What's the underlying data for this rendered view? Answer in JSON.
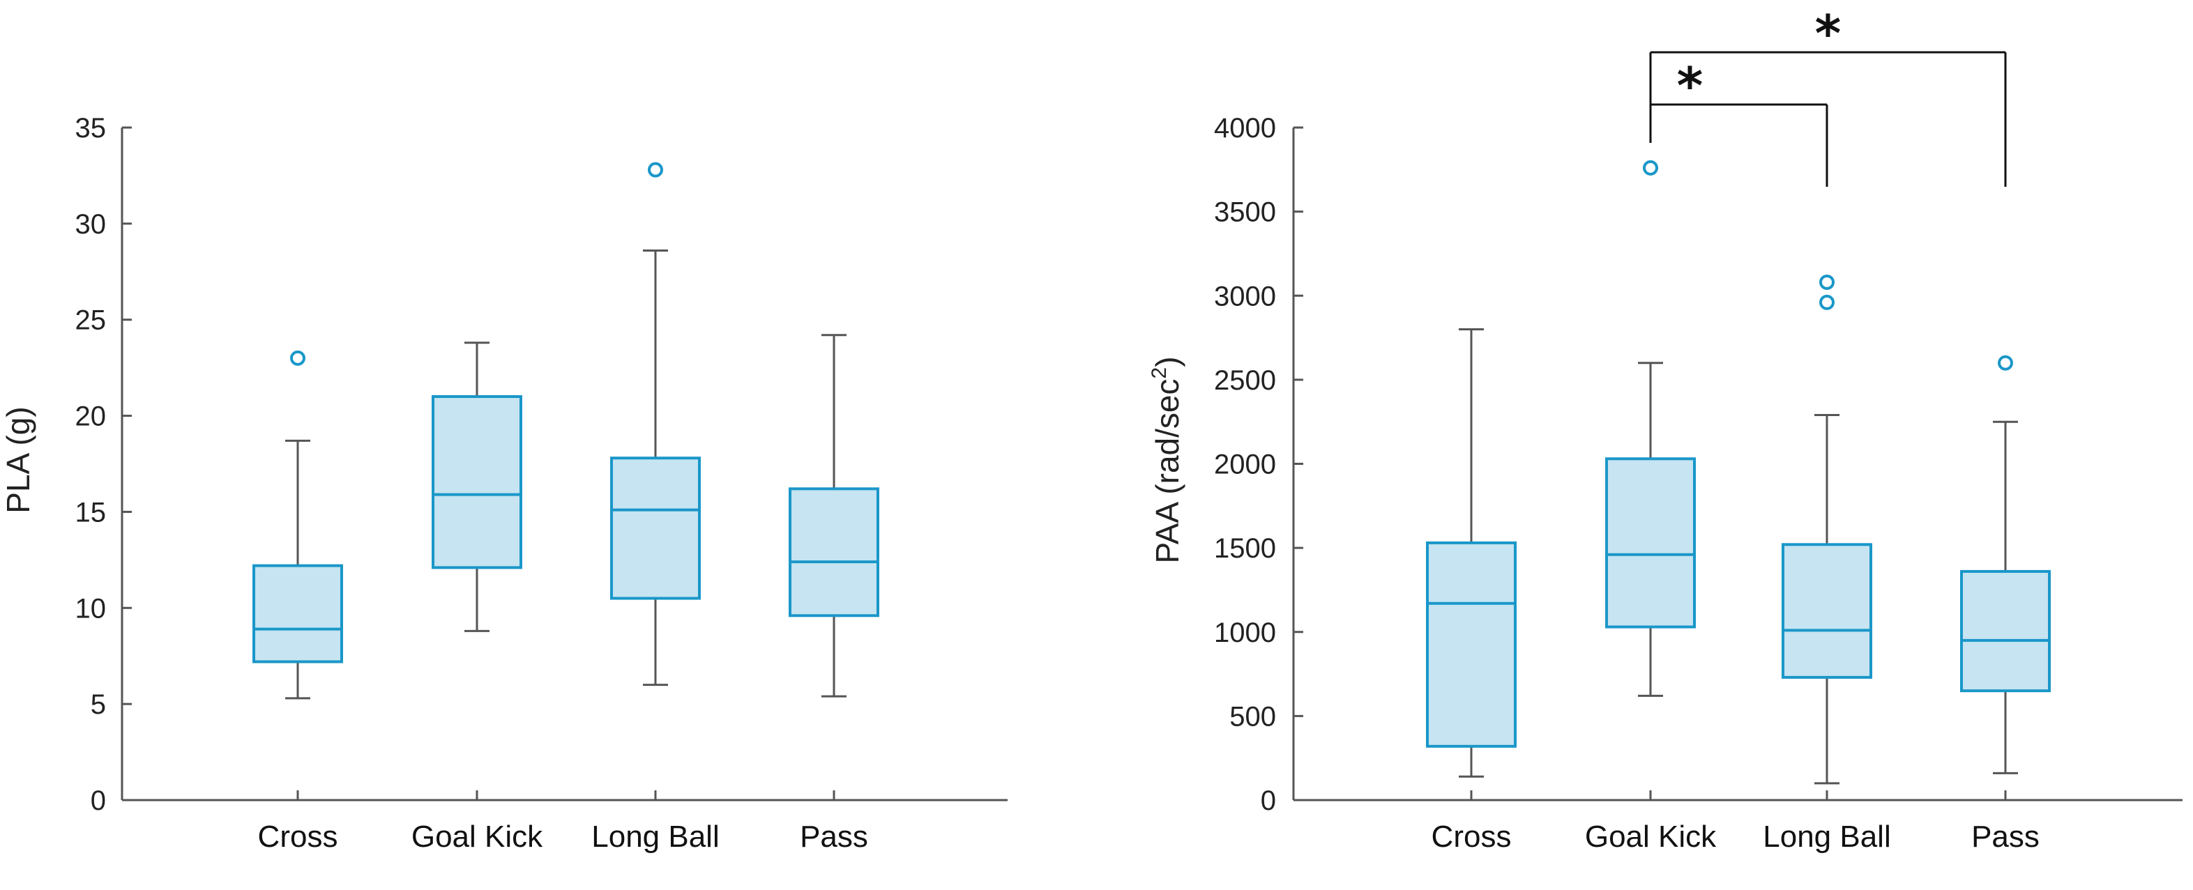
{
  "chart_data": [
    {
      "type": "box",
      "ylabel": "PLA (g)",
      "ylim": [
        0,
        35
      ],
      "yticks": [
        0,
        5,
        10,
        15,
        20,
        25,
        30,
        35
      ],
      "categories": [
        "Cross",
        "Goal Kick",
        "Long Ball",
        "Pass"
      ],
      "boxes": [
        {
          "category": "Cross",
          "whisker_low": 5.3,
          "q1": 7.2,
          "median": 8.9,
          "q3": 12.2,
          "whisker_high": 18.7,
          "outliers": [
            23.0
          ]
        },
        {
          "category": "Goal Kick",
          "whisker_low": 8.8,
          "q1": 12.1,
          "median": 15.9,
          "q3": 21.0,
          "whisker_high": 23.8,
          "outliers": []
        },
        {
          "category": "Long Ball",
          "whisker_low": 6.0,
          "q1": 10.5,
          "median": 15.1,
          "q3": 17.8,
          "whisker_high": 28.6,
          "outliers": [
            32.8
          ]
        },
        {
          "category": "Pass",
          "whisker_low": 5.4,
          "q1": 9.6,
          "median": 12.4,
          "q3": 16.2,
          "whisker_high": 24.2,
          "outliers": []
        }
      ],
      "significance": []
    },
    {
      "type": "box",
      "ylabel_main": "PAA (rad/sec",
      "ylabel_sup": "2",
      "ylabel_end": ")",
      "ylim": [
        0,
        4000
      ],
      "yticks": [
        0,
        500,
        1000,
        1500,
        2000,
        2500,
        3000,
        3500,
        4000
      ],
      "categories": [
        "Cross",
        "Goal Kick",
        "Long Ball",
        "Pass"
      ],
      "boxes": [
        {
          "category": "Cross",
          "whisker_low": 140,
          "q1": 320,
          "median": 1170,
          "q3": 1530,
          "whisker_high": 2800,
          "outliers": []
        },
        {
          "category": "Goal Kick",
          "whisker_low": 620,
          "q1": 1030,
          "median": 1460,
          "q3": 2030,
          "whisker_high": 2600,
          "outliers": [
            3760
          ]
        },
        {
          "category": "Long Ball",
          "whisker_low": 100,
          "q1": 730,
          "median": 1010,
          "q3": 1520,
          "whisker_high": 2290,
          "outliers": [
            2960,
            3080
          ]
        },
        {
          "category": "Pass",
          "whisker_low": 160,
          "q1": 650,
          "median": 950,
          "q3": 1360,
          "whisker_high": 2250,
          "outliers": [
            2600
          ]
        }
      ],
      "significance": [
        {
          "from": "Goal Kick",
          "to": "Long Ball",
          "label": "*"
        },
        {
          "from": "Goal Kick",
          "to": "Pass",
          "label": "*"
        }
      ]
    }
  ],
  "colors": {
    "box_fill": "#c6e4f1",
    "box_stroke": "#1a97c9",
    "whisker": "#555555",
    "axis": "#555555",
    "bracket": "#111111"
  }
}
